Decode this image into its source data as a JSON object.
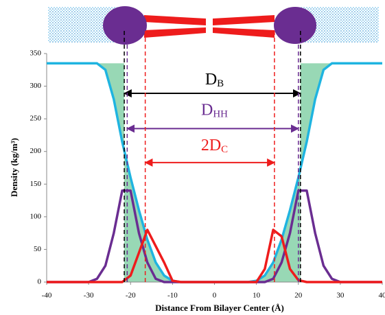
{
  "chart_data": {
    "type": "line",
    "x_label": "Distance From Bilayer Center (Å)",
    "y_label": "Density (kg/m³)",
    "x": [
      -40,
      -38,
      -36,
      -34,
      -32,
      -30,
      -28,
      -26,
      -24,
      -22,
      -20,
      -18,
      -16,
      -14,
      -12,
      -10,
      -8,
      -6,
      -4,
      -2,
      0,
      2,
      4,
      6,
      8,
      10,
      12,
      14,
      16,
      18,
      20,
      22,
      24,
      26,
      28,
      30,
      32,
      34,
      36,
      38,
      40
    ],
    "series": [
      {
        "color": "#1fb4e0",
        "values": [
          335,
          335,
          335,
          335,
          335,
          335,
          335,
          325,
          280,
          215,
          160,
          110,
          65,
          30,
          10,
          2,
          0,
          0,
          0,
          0,
          0,
          0,
          0,
          0,
          0,
          2,
          10,
          30,
          65,
          110,
          160,
          215,
          280,
          325,
          335,
          335,
          335,
          335,
          335,
          335,
          335
        ]
      },
      {
        "color": "#6a2d91",
        "values": [
          0,
          0,
          0,
          0,
          0,
          0,
          5,
          25,
          75,
          140,
          140,
          75,
          30,
          5,
          0,
          0,
          0,
          0,
          0,
          0,
          0,
          0,
          0,
          0,
          0,
          0,
          0,
          5,
          30,
          75,
          140,
          140,
          75,
          25,
          5,
          0,
          0,
          0,
          0,
          0,
          0
        ]
      },
      {
        "color": "#ee1c1c",
        "values": [
          0,
          0,
          0,
          0,
          0,
          0,
          0,
          0,
          0,
          0,
          10,
          45,
          80,
          55,
          30,
          2,
          0,
          0,
          0,
          0,
          0,
          0,
          0,
          0,
          0,
          0,
          20,
          80,
          70,
          20,
          3,
          0,
          0,
          0,
          0,
          0,
          0,
          0,
          0,
          0,
          0
        ]
      }
    ],
    "xlim": [
      -40,
      40
    ],
    "xticks": [
      -40,
      -30,
      -20,
      -10,
      0,
      10,
      20,
      30,
      40
    ],
    "ylim": [
      0,
      350
    ],
    "yticks": [
      0,
      50,
      100,
      150,
      200,
      250,
      300,
      350
    ],
    "shade_color": "#86d1a8",
    "annotations": [
      {
        "text": "D",
        "sub": "B",
        "color": "#000000",
        "x1": -21.5,
        "x2": 20.5,
        "y": 289,
        "label_y": 309
      },
      {
        "text": "D",
        "sub": "HH",
        "color": "#6a2d91",
        "x1": -20.8,
        "x2": 20,
        "y": 235,
        "label_y": 262
      },
      {
        "text": "2D",
        "sub": "C",
        "color": "#ee1c1c",
        "x1": -16.5,
        "x2": 14.3,
        "y": 183,
        "label_y": 208
      }
    ]
  }
}
